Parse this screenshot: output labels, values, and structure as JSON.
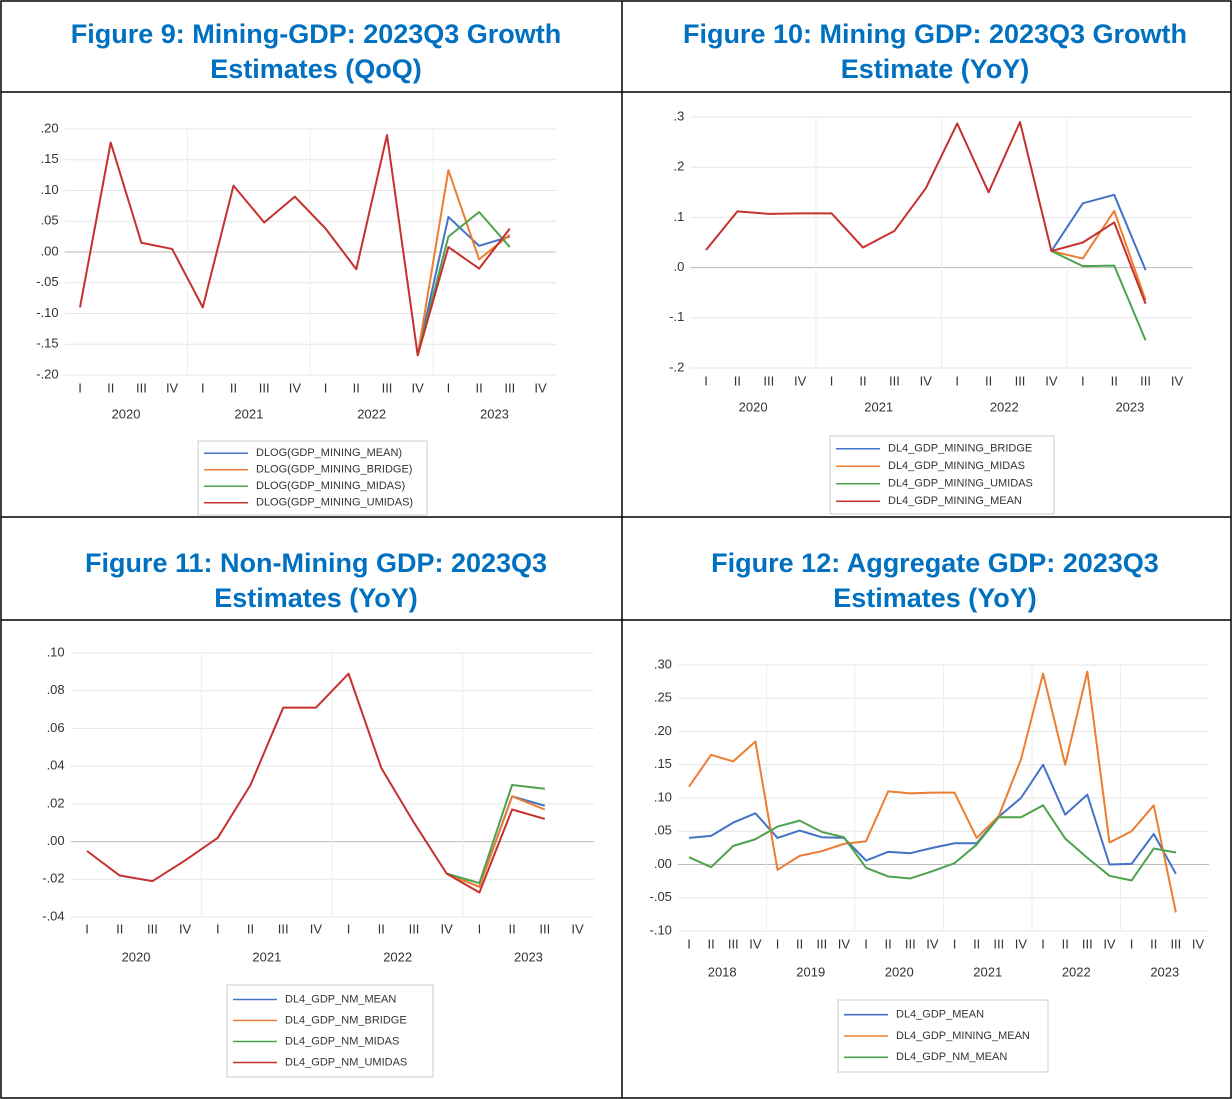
{
  "chart_data": [
    {
      "type": "line",
      "title": [
        "Figure 9: Mining-GDP: 2023Q3 Growth",
        "Estimates (QoQ)"
      ],
      "categories": [
        "I",
        "II",
        "III",
        "IV",
        "I",
        "II",
        "III",
        "IV",
        "I",
        "II",
        "III",
        "IV",
        "I",
        "II",
        "III",
        "IV"
      ],
      "years": [
        "2020",
        "2021",
        "2022",
        "2023"
      ],
      "ylim": [
        -0.2,
        0.2
      ],
      "yticks": [
        {
          "value": -0.2,
          "label": "-.20"
        },
        {
          "value": -0.15,
          "label": "-.15"
        },
        {
          "value": -0.1,
          "label": "-.10"
        },
        {
          "value": -0.05,
          "label": "-.05"
        },
        {
          "value": 0,
          "label": ".00"
        },
        {
          "value": 0.05,
          "label": ".05"
        },
        {
          "value": 0.1,
          "label": ".10"
        },
        {
          "value": 0.15,
          "label": ".15"
        },
        {
          "value": 0.2,
          "label": ".20"
        }
      ],
      "grid": true,
      "series": [
        {
          "name": "DLOG(GDP_MINING_MEAN)",
          "color": "#4472c4",
          "values": [
            null,
            null,
            null,
            null,
            null,
            null,
            null,
            null,
            null,
            null,
            null,
            -0.168,
            0.057,
            0.01,
            0.025,
            null
          ]
        },
        {
          "name": "DLOG(GDP_MINING_BRIDGE)",
          "color": "#ed7d31",
          "values": [
            null,
            null,
            null,
            null,
            null,
            null,
            null,
            null,
            null,
            null,
            null,
            -0.168,
            0.133,
            -0.012,
            0.028,
            null
          ]
        },
        {
          "name": "DLOG(GDP_MINING_MIDAS)",
          "color": "#4ea24e",
          "values": [
            null,
            null,
            null,
            null,
            null,
            null,
            null,
            null,
            null,
            null,
            null,
            -0.168,
            0.025,
            0.065,
            0.008,
            null
          ]
        },
        {
          "name": "DLOG(GDP_MINING_UMIDAS)",
          "color": "#c5312e",
          "values": [
            -0.09,
            0.178,
            0.015,
            0.005,
            -0.09,
            0.108,
            0.048,
            0.09,
            0.038,
            -0.028,
            0.19,
            -0.168,
            0.008,
            -0.027,
            0.038,
            null
          ]
        }
      ]
    },
    {
      "type": "line",
      "title": [
        "Figure 10: Mining GDP: 2023Q3 Growth",
        "Estimate (YoY)"
      ],
      "categories": [
        "I",
        "II",
        "III",
        "IV",
        "I",
        "II",
        "III",
        "IV",
        "I",
        "II",
        "III",
        "IV",
        "I",
        "II",
        "III",
        "IV"
      ],
      "years": [
        "2020",
        "2021",
        "2022",
        "2023"
      ],
      "ylim": [
        -0.2,
        0.3
      ],
      "yticks": [
        {
          "value": -0.2,
          "label": "-.2"
        },
        {
          "value": -0.1,
          "label": "-.1"
        },
        {
          "value": 0,
          "label": ".0"
        },
        {
          "value": 0.1,
          "label": ".1"
        },
        {
          "value": 0.2,
          "label": ".2"
        },
        {
          "value": 0.3,
          "label": ".3"
        }
      ],
      "grid": true,
      "series": [
        {
          "name": "DL4_GDP_MINING_BRIDGE",
          "color": "#4472c4",
          "values": [
            null,
            null,
            null,
            null,
            null,
            null,
            null,
            null,
            null,
            null,
            null,
            0.033,
            0.128,
            0.145,
            -0.005,
            null
          ]
        },
        {
          "name": "DL4_GDP_MINING_MIDAS",
          "color": "#ed7d31",
          "values": [
            null,
            null,
            null,
            null,
            null,
            null,
            null,
            null,
            null,
            null,
            null,
            0.033,
            0.018,
            0.113,
            -0.065,
            null
          ]
        },
        {
          "name": "DL4_GDP_MINING_UMIDAS",
          "color": "#4ea24e",
          "values": [
            null,
            null,
            null,
            null,
            null,
            null,
            null,
            null,
            null,
            null,
            null,
            0.033,
            0.003,
            0.004,
            -0.145,
            null
          ]
        },
        {
          "name": "DL4_GDP_MINING_MEAN",
          "color": "#c5312e",
          "values": [
            0.035,
            0.112,
            0.107,
            0.108,
            0.108,
            0.04,
            0.073,
            0.158,
            0.287,
            0.15,
            0.29,
            0.033,
            0.05,
            0.09,
            -0.072,
            null
          ]
        }
      ]
    },
    {
      "type": "line",
      "title": [
        "Figure 11: Non-Mining GDP: 2023Q3",
        "Estimates (YoY)"
      ],
      "categories": [
        "I",
        "II",
        "III",
        "IV",
        "I",
        "II",
        "III",
        "IV",
        "I",
        "II",
        "III",
        "IV",
        "I",
        "II",
        "III",
        "IV"
      ],
      "years": [
        "2020",
        "2021",
        "2022",
        "2023"
      ],
      "ylim": [
        -0.04,
        0.1
      ],
      "yticks": [
        {
          "value": -0.04,
          "label": "-.04"
        },
        {
          "value": -0.02,
          "label": "-.02"
        },
        {
          "value": 0,
          "label": ".00"
        },
        {
          "value": 0.02,
          "label": ".02"
        },
        {
          "value": 0.04,
          "label": ".04"
        },
        {
          "value": 0.06,
          "label": ".06"
        },
        {
          "value": 0.08,
          "label": ".08"
        },
        {
          "value": 0.1,
          "label": ".10"
        }
      ],
      "grid": true,
      "series": [
        {
          "name": "DL4_GDP_NM_MEAN",
          "color": "#4472c4",
          "values": [
            null,
            null,
            null,
            null,
            null,
            null,
            null,
            null,
            null,
            null,
            null,
            -0.017,
            -0.024,
            0.024,
            0.019,
            null
          ]
        },
        {
          "name": "DL4_GDP_NM_BRIDGE",
          "color": "#ed7d31",
          "values": [
            null,
            null,
            null,
            null,
            null,
            null,
            null,
            null,
            null,
            null,
            null,
            -0.017,
            -0.024,
            0.024,
            0.017,
            null
          ]
        },
        {
          "name": "DL4_GDP_NM_MIDAS",
          "color": "#4ea24e",
          "values": [
            null,
            null,
            null,
            null,
            null,
            null,
            null,
            null,
            null,
            null,
            null,
            -0.017,
            -0.022,
            0.03,
            0.028,
            null
          ]
        },
        {
          "name": "DL4_GDP_NM_UMIDAS",
          "color": "#c5312e",
          "values": [
            -0.005,
            -0.018,
            -0.021,
            -0.01,
            0.002,
            0.03,
            0.071,
            0.071,
            0.089,
            0.039,
            0.01,
            -0.017,
            -0.027,
            0.017,
            0.012,
            null
          ]
        }
      ]
    },
    {
      "type": "line",
      "title": [
        "Figure 12: Aggregate GDP: 2023Q3",
        "Estimates (YoY)"
      ],
      "categories": [
        "I",
        "II",
        "III",
        "IV",
        "I",
        "II",
        "III",
        "IV",
        "I",
        "II",
        "III",
        "IV",
        "I",
        "II",
        "III",
        "IV",
        "I",
        "II",
        "III",
        "IV",
        "I",
        "II",
        "III",
        "IV"
      ],
      "years": [
        "2018",
        "2019",
        "2020",
        "2021",
        "2022",
        "2023"
      ],
      "ylim": [
        -0.1,
        0.3
      ],
      "yticks": [
        {
          "value": -0.1,
          "label": "-.10"
        },
        {
          "value": -0.05,
          "label": "-.05"
        },
        {
          "value": 0,
          "label": ".00"
        },
        {
          "value": 0.05,
          "label": ".05"
        },
        {
          "value": 0.1,
          "label": ".10"
        },
        {
          "value": 0.15,
          "label": ".15"
        },
        {
          "value": 0.2,
          "label": ".20"
        },
        {
          "value": 0.25,
          "label": ".25"
        },
        {
          "value": 0.3,
          "label": ".30"
        }
      ],
      "grid": true,
      "series": [
        {
          "name": "DL4_GDP_MEAN",
          "color": "#4472c4",
          "values": [
            0.04,
            0.043,
            0.063,
            0.077,
            0.04,
            0.051,
            0.041,
            0.04,
            0.006,
            0.019,
            0.017,
            0.025,
            0.032,
            0.032,
            0.072,
            0.1,
            0.15,
            0.075,
            0.105,
            0.0,
            0.001,
            0.046,
            -0.014,
            null
          ]
        },
        {
          "name": "DL4_GDP_MINING_MEAN",
          "color": "#ed7d31",
          "values": [
            0.117,
            0.165,
            0.155,
            0.185,
            -0.008,
            0.013,
            0.02,
            0.031,
            0.035,
            0.11,
            0.107,
            0.108,
            0.108,
            0.04,
            0.073,
            0.158,
            0.287,
            0.15,
            0.29,
            0.033,
            0.05,
            0.089,
            -0.072,
            null
          ]
        },
        {
          "name": "DL4_GDP_NM_MEAN",
          "color": "#4ea24e",
          "values": [
            0.011,
            -0.004,
            0.028,
            0.038,
            0.057,
            0.066,
            0.049,
            0.041,
            -0.005,
            -0.018,
            -0.021,
            -0.01,
            0.002,
            0.03,
            0.071,
            0.071,
            0.089,
            0.039,
            0.01,
            -0.017,
            -0.024,
            0.024,
            0.018,
            null
          ]
        }
      ]
    }
  ]
}
